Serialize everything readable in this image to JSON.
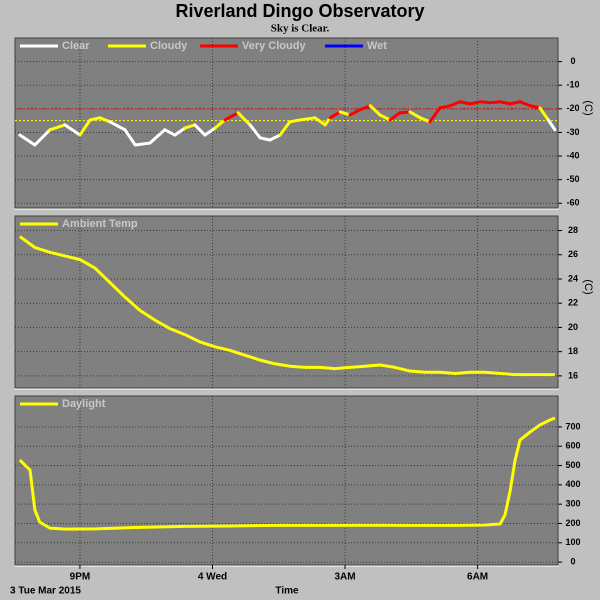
{
  "header": {
    "title": "Riverland Dingo Observatory",
    "subtitle": "Sky is Clear.",
    "x_label": "Time",
    "date_label": "3 Tue Mar 2015"
  },
  "chart_data": [
    {
      "type": "segmented-line",
      "x": [
        19.64,
        19.98,
        20.32,
        20.66,
        21.0,
        21.23,
        21.45,
        21.68,
        22.02,
        22.25,
        22.58,
        22.92,
        23.15,
        23.38,
        23.6,
        23.83,
        24.06,
        24.28,
        24.58,
        24.85,
        25.08,
        25.3,
        25.53,
        25.75,
        25.98,
        26.32,
        26.55,
        26.66,
        26.89,
        27.11,
        27.34,
        27.57,
        27.79,
        28.02,
        28.24,
        28.47,
        28.7,
        28.92,
        29.15,
        29.38,
        29.6,
        29.83,
        30.06,
        30.28,
        30.51,
        30.74,
        30.96,
        31.19,
        31.41,
        31.6,
        31.75
      ],
      "series": [
        {
          "name": "Clear",
          "color": "#ffffff",
          "values": [
            -31.1,
            -35.3,
            -28.9,
            null,
            -31.1,
            null,
            null,
            null,
            -28.9,
            -35.3,
            -34.5,
            -28.9,
            -31.1,
            -28.1,
            null,
            -31.1,
            -28.1,
            null,
            null,
            null,
            -32.3,
            -33.2,
            -31.1,
            null,
            null,
            null,
            null,
            null,
            null,
            null,
            null,
            null,
            null,
            null,
            null,
            null,
            null,
            null,
            null,
            null,
            null,
            null,
            null,
            null,
            null,
            null,
            null,
            null,
            null,
            null,
            -28.9
          ]
        },
        {
          "name": "Cloudy",
          "color": "#ffff00",
          "values": [
            null,
            null,
            null,
            -26.8,
            null,
            -24.7,
            -23.8,
            -25.5,
            null,
            null,
            null,
            null,
            null,
            null,
            -26.8,
            null,
            null,
            -24.7,
            null,
            -26.8,
            null,
            null,
            null,
            -25.5,
            -24.7,
            -23.8,
            -26.8,
            -23.8,
            null,
            -22.6,
            null,
            null,
            -22.6,
            -24.7,
            null,
            null,
            -23.8,
            -25.5,
            null,
            null,
            null,
            null,
            null,
            null,
            null,
            null,
            null,
            null,
            null,
            -24.7,
            null
          ]
        },
        {
          "name": "Very Cloudy",
          "color": "#ff0000",
          "values": [
            null,
            null,
            null,
            null,
            null,
            null,
            null,
            null,
            null,
            null,
            null,
            null,
            null,
            null,
            null,
            null,
            null,
            null,
            -21.7,
            null,
            null,
            null,
            null,
            null,
            null,
            null,
            null,
            null,
            -21.3,
            null,
            -20.4,
            -18.7,
            null,
            null,
            -21.7,
            -21.3,
            null,
            null,
            -19.6,
            -18.7,
            -17.0,
            -17.9,
            -17.0,
            -17.4,
            -17.0,
            -17.9,
            -17.0,
            -18.7,
            -19.6,
            null,
            null
          ]
        },
        {
          "name": "Wet",
          "color": "#0000ff",
          "values": [
            null,
            null,
            null,
            null,
            null,
            null,
            null,
            null,
            null,
            null,
            null,
            null,
            null,
            null,
            null,
            null,
            null,
            null,
            null,
            null,
            null,
            null,
            null,
            null,
            null,
            null,
            null,
            null,
            null,
            null,
            null,
            null,
            null,
            null,
            null,
            null,
            null,
            null,
            null,
            null,
            null,
            null,
            null,
            null,
            null,
            null,
            null,
            null,
            null,
            null,
            null
          ]
        }
      ],
      "reference_lines": [
        {
          "value": -20,
          "color": "#ff0000"
        },
        {
          "value": -25,
          "color": "#ffff00"
        }
      ],
      "y_label": "(C)",
      "xlim": [
        19.53,
        31.82
      ],
      "ylim": [
        -62,
        10
      ],
      "yticks": [
        0,
        -10,
        -20,
        -30,
        -40,
        -50,
        -60
      ],
      "grid": true
    },
    {
      "type": "line",
      "x": [
        19.64,
        19.98,
        20.32,
        20.66,
        21.0,
        21.34,
        21.68,
        22.02,
        22.36,
        22.7,
        23.04,
        23.38,
        23.72,
        24.06,
        24.4,
        24.74,
        25.08,
        25.41,
        25.75,
        26.09,
        26.43,
        26.77,
        27.11,
        27.45,
        27.79,
        28.13,
        28.47,
        28.81,
        29.15,
        29.49,
        29.83,
        30.17,
        30.51,
        30.85,
        31.19,
        31.53,
        31.75
      ],
      "series": [
        {
          "name": "Ambient Temp",
          "color": "#ffff00",
          "values": [
            27.5,
            26.6,
            26.2,
            25.9,
            25.6,
            24.9,
            23.7,
            22.5,
            21.4,
            20.6,
            19.9,
            19.4,
            18.8,
            18.4,
            18.1,
            17.7,
            17.3,
            17.0,
            16.8,
            16.7,
            16.7,
            16.6,
            16.7,
            16.8,
            16.9,
            16.7,
            16.4,
            16.3,
            16.3,
            16.2,
            16.3,
            16.3,
            16.2,
            16.1,
            16.1,
            16.1,
            16.1
          ]
        }
      ],
      "y_label": "(C)",
      "xlim": [
        19.53,
        31.82
      ],
      "ylim": [
        15,
        29.2
      ],
      "yticks": [
        16,
        18,
        20,
        22,
        24,
        26,
        28
      ],
      "grid": true
    },
    {
      "type": "line",
      "x": [
        19.64,
        19.75,
        19.87,
        19.98,
        20.09,
        20.32,
        20.66,
        21.34,
        22.36,
        23.38,
        24.4,
        25.41,
        26.43,
        27.45,
        28.47,
        29.49,
        30.17,
        30.51,
        30.62,
        30.74,
        30.85,
        30.96,
        31.19,
        31.41,
        31.64,
        31.75
      ],
      "series": [
        {
          "name": "Daylight",
          "color": "#ffff00",
          "values": [
            529,
            503,
            477,
            270,
            207,
            176,
            171,
            172,
            180,
            185,
            187,
            190,
            190,
            191,
            190,
            190,
            192,
            197,
            244,
            373,
            529,
            632,
            674,
            710,
            736,
            746
          ]
        }
      ],
      "xlim": [
        19.53,
        31.82
      ],
      "xticks": [
        {
          "value": 21,
          "label": "9PM"
        },
        {
          "value": 24,
          "label": "4 Wed"
        },
        {
          "value": 27,
          "label": "3AM"
        },
        {
          "value": 30,
          "label": "6AM"
        }
      ],
      "ylim": [
        -15,
        860
      ],
      "yticks": [
        0,
        100,
        200,
        300,
        400,
        500,
        600,
        700
      ],
      "grid": true
    }
  ]
}
